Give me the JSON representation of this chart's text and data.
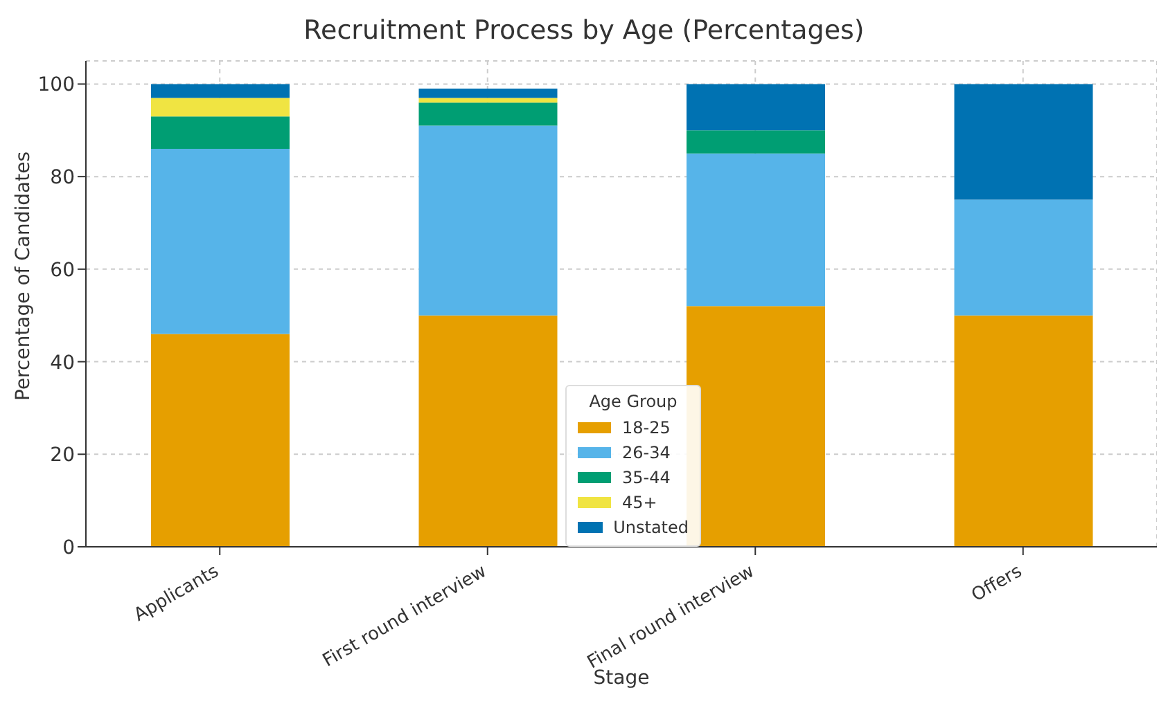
{
  "chart_data": {
    "type": "bar",
    "title": "Recruitment Process by Age (Percentages)",
    "xlabel": "Stage",
    "ylabel": "Percentage of Candidates",
    "legend_title": "Age Group",
    "categories": [
      "Applicants",
      "First round interview",
      "Final round interview",
      "Offers"
    ],
    "stacked": true,
    "series": [
      {
        "name": "18-25",
        "color": "#e69f00",
        "values": [
          46,
          50,
          52,
          50
        ]
      },
      {
        "name": "26-34",
        "color": "#56b4e9",
        "values": [
          40,
          41,
          33,
          25
        ]
      },
      {
        "name": "35-44",
        "color": "#009e73",
        "values": [
          7,
          5,
          5,
          0
        ]
      },
      {
        "name": "45+",
        "color": "#f0e442",
        "values": [
          4,
          1,
          0,
          0
        ]
      },
      {
        "name": "Unstated",
        "color": "#0072b2",
        "values": [
          3,
          2,
          10,
          25
        ]
      }
    ],
    "ylim": [
      0,
      105
    ],
    "yticks": [
      0,
      20,
      40,
      60,
      80,
      100
    ],
    "grid": true,
    "legend": "bottom"
  }
}
